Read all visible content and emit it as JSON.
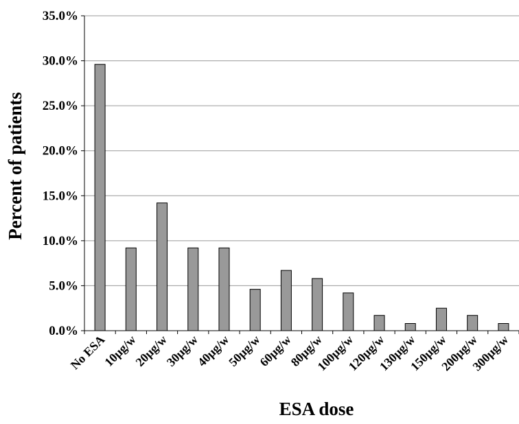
{
  "chart_data": {
    "type": "bar",
    "title": "",
    "xlabel": "ESA dose",
    "ylabel": "Percent of patients",
    "categories": [
      "No ESA",
      "10µg/w",
      "20µg/w",
      "30µg/w",
      "40µg/w",
      "50µg/w",
      "60µg/w",
      "80µg/w",
      "100µg/w",
      "120µg/w",
      "130µg/w",
      "150µg/w",
      "200µg/w",
      "300µg/w"
    ],
    "values": [
      29.6,
      9.2,
      14.2,
      9.2,
      9.2,
      4.6,
      6.7,
      5.8,
      4.2,
      1.7,
      0.8,
      2.5,
      1.7,
      0.8
    ],
    "ylim": [
      0,
      35
    ],
    "yticks": [
      0,
      5,
      10,
      15,
      20,
      25,
      30,
      35
    ],
    "ytick_labels": [
      "0.0%",
      "5.0%",
      "10.0%",
      "15.0%",
      "20.0%",
      "25.0%",
      "30.0%",
      "35.0%"
    ],
    "grid": true,
    "legend": "none",
    "colors": {
      "bar_fill": "#999999",
      "bar_stroke": "#000000",
      "grid": "#999999"
    }
  }
}
